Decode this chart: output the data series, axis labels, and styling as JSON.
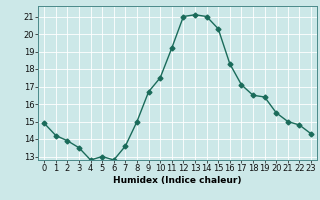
{
  "x": [
    0,
    1,
    2,
    3,
    4,
    5,
    6,
    7,
    8,
    9,
    10,
    11,
    12,
    13,
    14,
    15,
    16,
    17,
    18,
    19,
    20,
    21,
    22,
    23
  ],
  "y": [
    14.9,
    14.2,
    13.9,
    13.5,
    12.8,
    13.0,
    12.8,
    13.6,
    15.0,
    16.7,
    17.5,
    19.2,
    21.0,
    21.1,
    21.0,
    20.3,
    18.3,
    17.1,
    16.5,
    16.4,
    15.5,
    15.0,
    14.8,
    14.3
  ],
  "xlabel": "Humidex (Indice chaleur)",
  "xlim": [
    -0.5,
    23.5
  ],
  "ylim": [
    12.8,
    21.6
  ],
  "yticks": [
    13,
    14,
    15,
    16,
    17,
    18,
    19,
    20,
    21
  ],
  "xticks": [
    0,
    1,
    2,
    3,
    4,
    5,
    6,
    7,
    8,
    9,
    10,
    11,
    12,
    13,
    14,
    15,
    16,
    17,
    18,
    19,
    20,
    21,
    22,
    23
  ],
  "line_color": "#1a6b5a",
  "marker": "D",
  "marker_size": 2.5,
  "bg_color": "#cce8e8",
  "grid_color": "#ffffff",
  "line_width": 1.0,
  "label_fontsize": 6.5,
  "tick_fontsize": 6.0
}
